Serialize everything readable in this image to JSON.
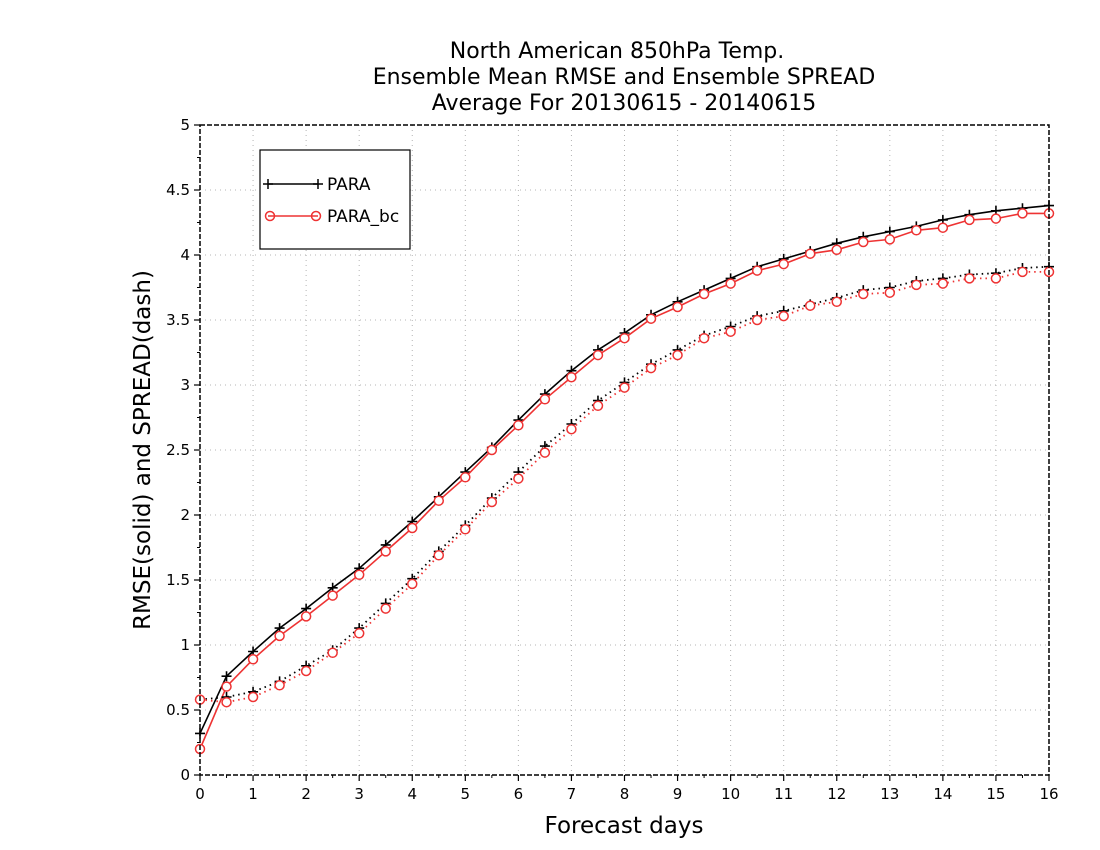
{
  "chart_data": {
    "type": "line",
    "title_lines": [
      "North American 850hPa Temp.",
      "Ensemble Mean RMSE and Ensemble SPREAD",
      "Average For 20130615 - 20140615"
    ],
    "xlabel": "Forecast days",
    "ylabel": "RMSE(solid) and SPREAD(dash)",
    "xlim": [
      0,
      16
    ],
    "ylim": [
      0,
      5
    ],
    "xticks": [
      "0",
      "1",
      "2",
      "3",
      "4",
      "5",
      "6",
      "7",
      "8",
      "9",
      "10",
      "11",
      "12",
      "13",
      "14",
      "15",
      "16"
    ],
    "yticks": [
      "0",
      "0.5",
      "1",
      "1.5",
      "2",
      "2.5",
      "3",
      "3.5",
      "4",
      "4.5",
      "5"
    ],
    "grid": true,
    "legend_position": "top-left",
    "legend": [
      "PARA",
      "PARA_bc"
    ],
    "x": [
      0,
      0.5,
      1,
      1.5,
      2,
      2.5,
      3,
      3.5,
      4,
      4.5,
      5,
      5.5,
      6,
      6.5,
      7,
      7.5,
      8,
      8.5,
      9,
      9.5,
      10,
      10.5,
      11,
      11.5,
      12,
      12.5,
      13,
      13.5,
      14,
      14.5,
      15,
      15.5,
      16
    ],
    "series": [
      {
        "name": "PARA",
        "metric": "RMSE",
        "line_style": "solid",
        "color": "#000000",
        "marker": "plus",
        "values": [
          0.32,
          0.76,
          0.95,
          1.13,
          1.28,
          1.44,
          1.59,
          1.77,
          1.95,
          2.14,
          2.33,
          2.52,
          2.73,
          2.93,
          3.11,
          3.27,
          3.4,
          3.54,
          3.64,
          3.73,
          3.82,
          3.91,
          3.97,
          4.03,
          4.09,
          4.14,
          4.18,
          4.22,
          4.27,
          4.31,
          4.34,
          4.36,
          4.38
        ]
      },
      {
        "name": "PARA_bc",
        "metric": "RMSE",
        "line_style": "solid",
        "color": "#ee3333",
        "marker": "circle",
        "values": [
          0.2,
          0.68,
          0.89,
          1.07,
          1.22,
          1.38,
          1.54,
          1.72,
          1.9,
          2.11,
          2.29,
          2.5,
          2.69,
          2.89,
          3.06,
          3.23,
          3.36,
          3.51,
          3.6,
          3.7,
          3.78,
          3.88,
          3.93,
          4.01,
          4.04,
          4.1,
          4.12,
          4.19,
          4.21,
          4.27,
          4.28,
          4.32,
          4.32
        ]
      },
      {
        "name": "PARA",
        "metric": "SPREAD",
        "line_style": "dotted",
        "color": "#000000",
        "marker": "plus",
        "values": [
          0.58,
          0.6,
          0.64,
          0.72,
          0.84,
          0.96,
          1.13,
          1.32,
          1.51,
          1.72,
          1.92,
          2.13,
          2.33,
          2.53,
          2.7,
          2.88,
          3.02,
          3.16,
          3.27,
          3.38,
          3.45,
          3.53,
          3.57,
          3.62,
          3.67,
          3.73,
          3.75,
          3.8,
          3.82,
          3.85,
          3.86,
          3.9,
          3.91
        ]
      },
      {
        "name": "PARA_bc",
        "metric": "SPREAD",
        "line_style": "dotted",
        "color": "#ee3333",
        "marker": "circle",
        "values": [
          0.58,
          0.56,
          0.6,
          0.69,
          0.8,
          0.94,
          1.09,
          1.28,
          1.47,
          1.69,
          1.89,
          2.1,
          2.28,
          2.48,
          2.66,
          2.84,
          2.98,
          3.13,
          3.23,
          3.36,
          3.41,
          3.5,
          3.53,
          3.61,
          3.64,
          3.7,
          3.71,
          3.77,
          3.78,
          3.82,
          3.82,
          3.87,
          3.87
        ]
      }
    ]
  }
}
